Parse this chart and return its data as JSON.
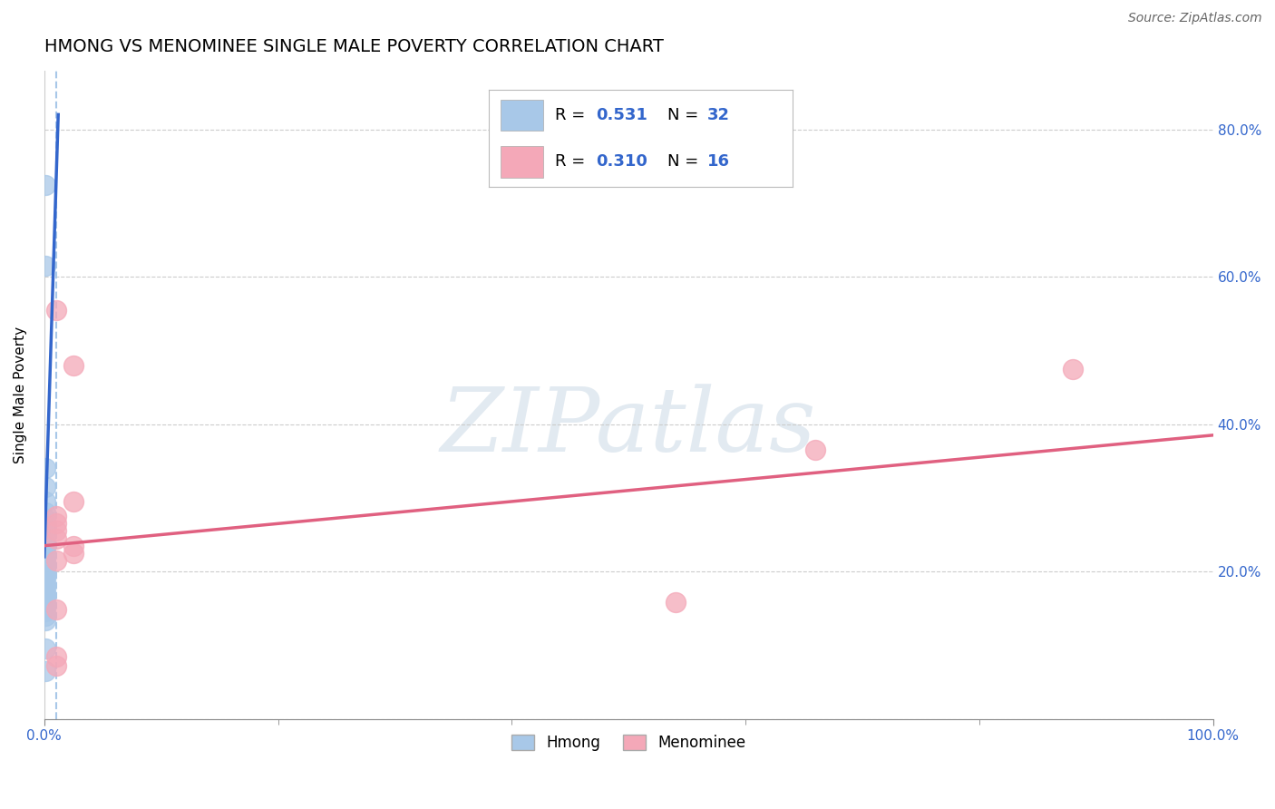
{
  "title": "HMONG VS MENOMINEE SINGLE MALE POVERTY CORRELATION CHART",
  "source": "Source: ZipAtlas.com",
  "ylabel": "Single Male Poverty",
  "xlim": [
    0.0,
    1.0
  ],
  "ylim": [
    0.0,
    0.88
  ],
  "xticks": [
    0.0,
    1.0
  ],
  "xtick_labels": [
    "0.0%",
    "100.0%"
  ],
  "yticks": [
    0.0,
    0.2,
    0.4,
    0.6,
    0.8
  ],
  "ytick_labels": [
    "",
    "20.0%",
    "40.0%",
    "60.0%",
    "80.0%"
  ],
  "hmong_R": 0.531,
  "hmong_N": 32,
  "menominee_R": 0.31,
  "menominee_N": 16,
  "hmong_color": "#a8c8e8",
  "menominee_color": "#f4a8b8",
  "hmong_line_color": "#3366cc",
  "menominee_line_color": "#e06080",
  "legend_color": "#3366cc",
  "watermark_text": "ZIPatlas",
  "hmong_x": [
    0.001,
    0.001,
    0.001,
    0.001,
    0.001,
    0.001,
    0.001,
    0.001,
    0.001,
    0.001,
    0.001,
    0.001,
    0.001,
    0.001,
    0.001,
    0.001,
    0.001,
    0.001,
    0.001,
    0.001,
    0.001,
    0.001,
    0.001,
    0.001,
    0.001,
    0.001,
    0.001,
    0.001,
    0.001,
    0.001,
    0.001,
    0.001
  ],
  "hmong_y": [
    0.725,
    0.615,
    0.34,
    0.315,
    0.295,
    0.28,
    0.272,
    0.265,
    0.26,
    0.254,
    0.248,
    0.242,
    0.236,
    0.23,
    0.224,
    0.218,
    0.212,
    0.205,
    0.2,
    0.194,
    0.188,
    0.182,
    0.176,
    0.17,
    0.164,
    0.158,
    0.152,
    0.146,
    0.14,
    0.134,
    0.095,
    0.065
  ],
  "menominee_x": [
    0.01,
    0.025,
    0.025,
    0.01,
    0.01,
    0.01,
    0.01,
    0.025,
    0.025,
    0.01,
    0.01,
    0.01,
    0.01,
    0.54,
    0.66,
    0.88
  ],
  "menominee_y": [
    0.555,
    0.48,
    0.295,
    0.275,
    0.265,
    0.255,
    0.245,
    0.235,
    0.225,
    0.215,
    0.148,
    0.085,
    0.072,
    0.158,
    0.365,
    0.475
  ],
  "hmong_trendline_x": [
    0.0,
    0.012
  ],
  "hmong_trendline_y": [
    0.22,
    0.82
  ],
  "menominee_trendline_x": [
    0.0,
    1.0
  ],
  "menominee_trendline_y": [
    0.235,
    0.385
  ],
  "dashed_vline_x": 0.01,
  "background_color": "#ffffff",
  "grid_color": "#cccccc",
  "title_fontsize": 14,
  "axis_label_fontsize": 11,
  "tick_fontsize": 11,
  "legend_fontsize": 13,
  "source_fontsize": 10
}
